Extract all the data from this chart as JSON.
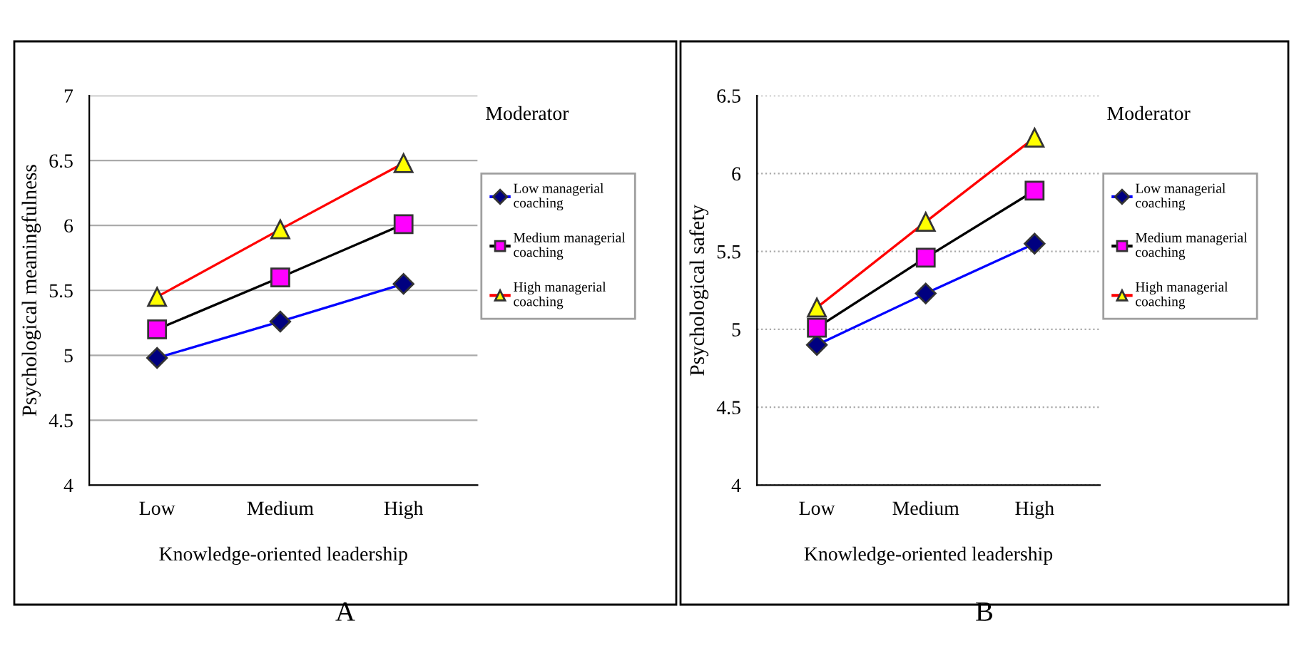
{
  "chart_data": [
    {
      "type": "line",
      "xlabel": "Knowledge-oriented leadership",
      "ylabel": "Psychological meaningfulness",
      "legend_title": "Moderator",
      "annotations": [
        "A"
      ],
      "categories": [
        "Low",
        "Medium",
        "High"
      ],
      "ylim": [
        4,
        7
      ],
      "yticks": [
        4,
        4.5,
        5,
        5.5,
        6,
        6.5,
        7
      ],
      "grid": "y",
      "legend": "right",
      "series": [
        {
          "name": "Low managerial coaching",
          "color": "#0000ff",
          "marker": "diamond",
          "values": [
            4.98,
            5.26,
            5.55
          ]
        },
        {
          "name": "Medium managerial coaching",
          "color": "#000000",
          "marker": "square",
          "values": [
            5.2,
            5.6,
            6.01
          ]
        },
        {
          "name": "High managerial coaching",
          "color": "#ff0000",
          "marker": "triangle",
          "values": [
            5.45,
            5.97,
            6.48
          ]
        }
      ]
    },
    {
      "type": "line",
      "xlabel": "Knowledge-oriented leadership",
      "ylabel": "Psychological safety",
      "legend_title": "Moderator",
      "annotations": [
        "B"
      ],
      "categories": [
        "Low",
        "Medium",
        "High"
      ],
      "ylim": [
        4,
        6.5
      ],
      "yticks": [
        4,
        4.5,
        5,
        5.5,
        6,
        6.5
      ],
      "grid": "y",
      "legend": "right",
      "series": [
        {
          "name": "Low managerial coaching",
          "color": "#0000ff",
          "marker": "diamond",
          "values": [
            4.9,
            5.23,
            5.55
          ]
        },
        {
          "name": "Medium managerial coaching",
          "color": "#000000",
          "marker": "square",
          "values": [
            5.01,
            5.46,
            5.89
          ]
        },
        {
          "name": "High managerial coaching",
          "color": "#ff0000",
          "marker": "triangle",
          "values": [
            5.14,
            5.69,
            6.23
          ]
        }
      ]
    }
  ]
}
